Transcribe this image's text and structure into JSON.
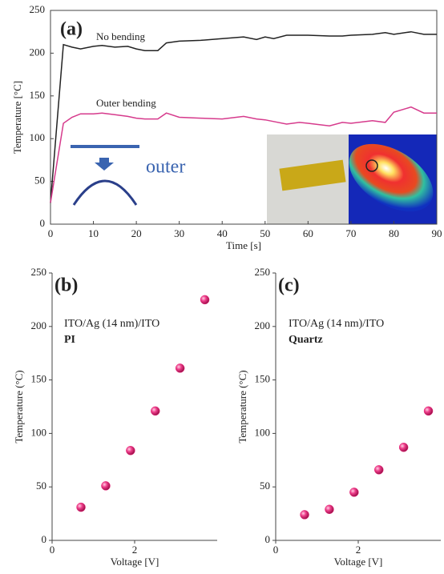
{
  "chart_data": [
    {
      "type": "line",
      "panel_label": "(a)",
      "x_label": "Time [s]",
      "y_label": "Temperature [°C]",
      "x": [
        0,
        3,
        5,
        7,
        10,
        12,
        15,
        18,
        20,
        22,
        25,
        27,
        30,
        35,
        40,
        45,
        48,
        50,
        52,
        55,
        58,
        60,
        65,
        68,
        70,
        75,
        78,
        80,
        84,
        87,
        90
      ],
      "series": [
        {
          "name": "No bending",
          "color": "#222222",
          "values": [
            25,
            210,
            207,
            205,
            208,
            209,
            207,
            208,
            205,
            203,
            203,
            212,
            214,
            215,
            217,
            219,
            216,
            219,
            217,
            221,
            221,
            221,
            220,
            220,
            221,
            222,
            224,
            222,
            225,
            222,
            222
          ]
        },
        {
          "name": "Outer bending",
          "color": "#d63a8c",
          "values": [
            25,
            118,
            125,
            129,
            129,
            130,
            128,
            126,
            124,
            123,
            123,
            130,
            125,
            124,
            123,
            126,
            123,
            122,
            120,
            117,
            119,
            118,
            115,
            119,
            118,
            121,
            119,
            131,
            137,
            130,
            130
          ]
        }
      ],
      "annotations": [
        "outer"
      ],
      "xlim": [
        0,
        90
      ],
      "xticks": [
        0,
        10,
        20,
        30,
        40,
        50,
        60,
        70,
        80,
        90
      ],
      "ylim": [
        0,
        250
      ],
      "yticks": [
        0,
        50,
        100,
        150,
        200,
        250
      ]
    },
    {
      "type": "scatter",
      "panel_label": "(b)",
      "x_label": "Voltage [V]",
      "y_label": "Temperature (°C)",
      "annotations": [
        "ITO/Ag (14 nm)/ITO",
        "PI"
      ],
      "color": "#e8287a",
      "x": [
        0.7,
        1.3,
        1.9,
        2.5,
        3.1,
        3.7
      ],
      "values": [
        31,
        51,
        84,
        121,
        161,
        225
      ],
      "xlim": [
        0,
        4
      ],
      "xticks": [
        0,
        2
      ],
      "ylim": [
        0,
        250
      ],
      "yticks": [
        0,
        50,
        100,
        150,
        200,
        250
      ]
    },
    {
      "type": "scatter",
      "panel_label": "(c)",
      "x_label": "Voltage [V]",
      "y_label": "Temperature (°C)",
      "annotations": [
        "ITO/Ag (14 nm)/ITO",
        "Quartz"
      ],
      "color": "#e8287a",
      "x": [
        0.7,
        1.3,
        1.9,
        2.5,
        3.1,
        3.7
      ],
      "values": [
        24,
        29,
        45,
        66,
        87,
        121
      ],
      "xlim": [
        0,
        4
      ],
      "xticks": [
        0,
        2
      ],
      "ylim": [
        0,
        250
      ],
      "yticks": [
        0,
        50,
        100,
        150,
        200,
        250
      ]
    }
  ]
}
